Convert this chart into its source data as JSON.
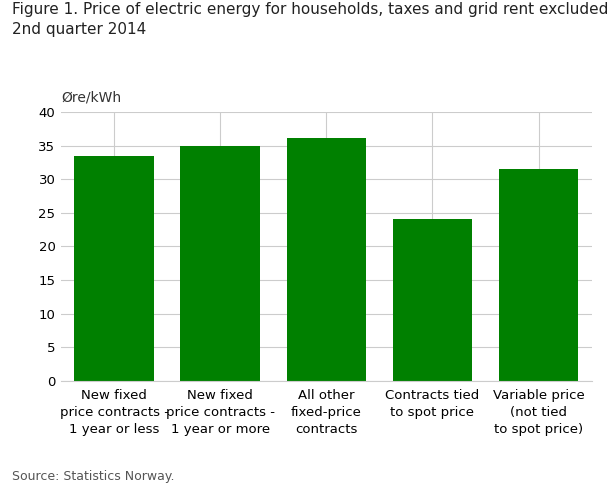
{
  "title_line1": "Figure 1. Price of electric energy for households, taxes and grid rent excluded.",
  "title_line2": "2nd quarter 2014",
  "ylabel": "Øre/kWh",
  "source": "Source: Statistics Norway.",
  "categories": [
    "New fixed\nprice contracts -\n1 year or less",
    "New fixed\nprice contracts -\n1 year or more",
    "All other\nfixed-price\ncontracts",
    "Contracts tied\nto spot price",
    "Variable price\n(not tied\nto spot price)"
  ],
  "values": [
    33.5,
    35.0,
    36.1,
    24.1,
    31.6
  ],
  "bar_color": "#008000",
  "ylim": [
    0,
    40
  ],
  "yticks": [
    0,
    5,
    10,
    15,
    20,
    25,
    30,
    35,
    40
  ],
  "background_color": "#ffffff",
  "title_fontsize": 11,
  "ylabel_fontsize": 10,
  "tick_fontsize": 9.5,
  "source_fontsize": 9,
  "grid_color": "#cccccc"
}
